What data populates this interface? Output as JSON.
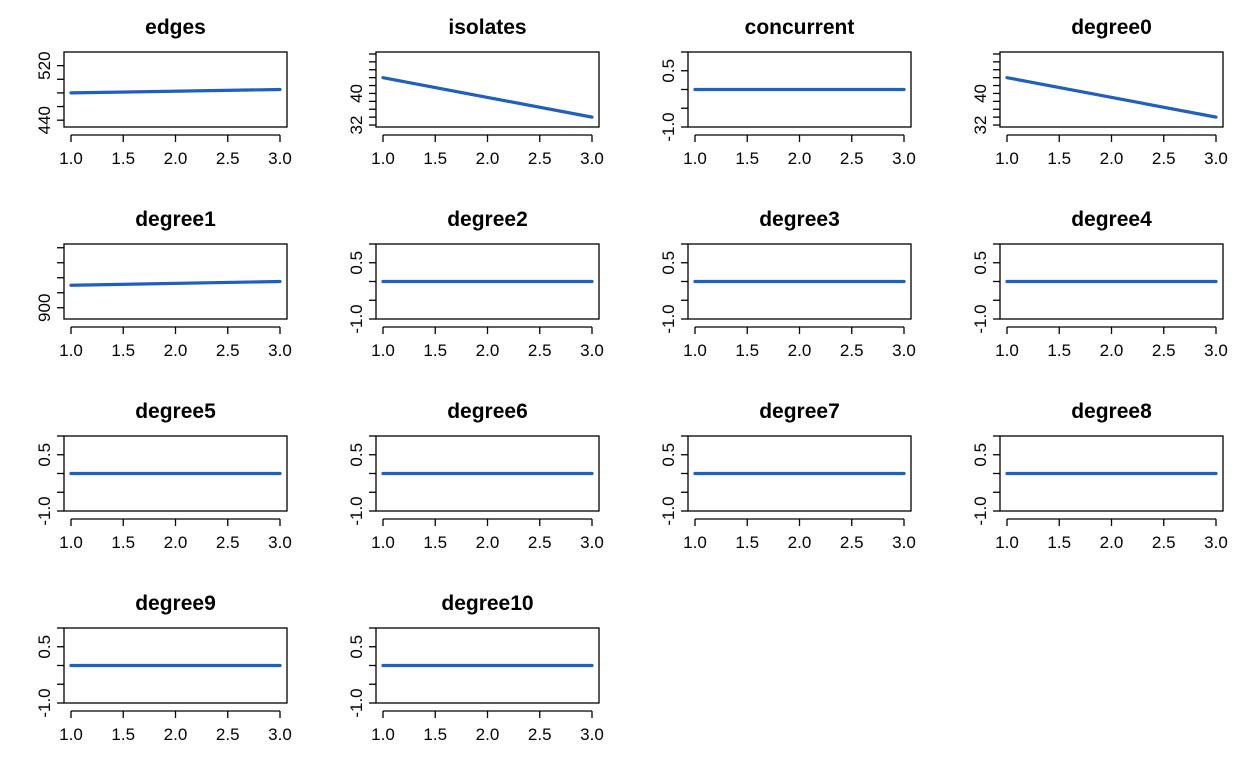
{
  "chart_data": {
    "type": "line",
    "layout": {
      "rows": 4,
      "cols": 4
    },
    "line_color": "#1f5fbf",
    "panels": [
      {
        "title": "edges",
        "x": [
          1,
          3
        ],
        "y": [
          480,
          485
        ],
        "ylim": [
          430,
          540
        ],
        "yticks": [
          {
            "v": 440,
            "label": "440"
          },
          {
            "v": 460,
            "label": ""
          },
          {
            "v": 480,
            "label": ""
          },
          {
            "v": 500,
            "label": ""
          },
          {
            "v": 520,
            "label": "520"
          }
        ],
        "xticks": [
          {
            "v": 1.0,
            "label": "1.0"
          },
          {
            "v": 1.5,
            "label": "1.5"
          },
          {
            "v": 2.0,
            "label": "2.0"
          },
          {
            "v": 2.5,
            "label": "2.5"
          },
          {
            "v": 3.0,
            "label": "3.0"
          }
        ]
      },
      {
        "title": "isolates",
        "x": [
          1,
          3
        ],
        "y": [
          44,
          34
        ],
        "ylim": [
          31.5,
          50.5
        ],
        "yticks": [
          {
            "v": 32,
            "label": "32"
          },
          {
            "v": 34,
            "label": ""
          },
          {
            "v": 36,
            "label": ""
          },
          {
            "v": 38,
            "label": ""
          },
          {
            "v": 40,
            "label": "40"
          },
          {
            "v": 42,
            "label": ""
          },
          {
            "v": 44,
            "label": ""
          },
          {
            "v": 46,
            "label": ""
          },
          {
            "v": 48,
            "label": ""
          },
          {
            "v": 50,
            "label": ""
          }
        ],
        "xticks": [
          {
            "v": 1.0,
            "label": "1.0"
          },
          {
            "v": 1.5,
            "label": "1.5"
          },
          {
            "v": 2.0,
            "label": "2.0"
          },
          {
            "v": 2.5,
            "label": "2.5"
          },
          {
            "v": 3.0,
            "label": "3.0"
          }
        ]
      },
      {
        "title": "concurrent",
        "x": [
          1,
          3
        ],
        "y": [
          0,
          0
        ],
        "ylim": [
          -1.0,
          1.0
        ],
        "yticks": [
          {
            "v": -1.0,
            "label": "-1.0"
          },
          {
            "v": -0.5,
            "label": ""
          },
          {
            "v": 0.0,
            "label": ""
          },
          {
            "v": 0.5,
            "label": "0.5"
          },
          {
            "v": 1.0,
            "label": ""
          }
        ],
        "xticks": [
          {
            "v": 1.0,
            "label": "1.0"
          },
          {
            "v": 1.5,
            "label": "1.5"
          },
          {
            "v": 2.0,
            "label": "2.0"
          },
          {
            "v": 2.5,
            "label": "2.5"
          },
          {
            "v": 3.0,
            "label": "3.0"
          }
        ]
      },
      {
        "title": "degree0",
        "x": [
          1,
          3
        ],
        "y": [
          44,
          34
        ],
        "ylim": [
          31.5,
          50.5
        ],
        "yticks": [
          {
            "v": 32,
            "label": "32"
          },
          {
            "v": 34,
            "label": ""
          },
          {
            "v": 36,
            "label": ""
          },
          {
            "v": 38,
            "label": ""
          },
          {
            "v": 40,
            "label": "40"
          },
          {
            "v": 42,
            "label": ""
          },
          {
            "v": 44,
            "label": ""
          },
          {
            "v": 46,
            "label": ""
          },
          {
            "v": 48,
            "label": ""
          },
          {
            "v": 50,
            "label": ""
          }
        ],
        "xticks": [
          {
            "v": 1.0,
            "label": "1.0"
          },
          {
            "v": 1.5,
            "label": "1.5"
          },
          {
            "v": 2.0,
            "label": "2.0"
          },
          {
            "v": 2.5,
            "label": "2.5"
          },
          {
            "v": 3.0,
            "label": "3.0"
          }
        ]
      },
      {
        "title": "degree1",
        "x": [
          1,
          3
        ],
        "y": [
          930,
          935
        ],
        "ylim": [
          885,
          985
        ],
        "yticks": [
          {
            "v": 900,
            "label": "900"
          },
          {
            "v": 920,
            "label": ""
          },
          {
            "v": 940,
            "label": ""
          },
          {
            "v": 960,
            "label": ""
          },
          {
            "v": 980,
            "label": ""
          }
        ],
        "xticks": [
          {
            "v": 1.0,
            "label": "1.0"
          },
          {
            "v": 1.5,
            "label": "1.5"
          },
          {
            "v": 2.0,
            "label": "2.0"
          },
          {
            "v": 2.5,
            "label": "2.5"
          },
          {
            "v": 3.0,
            "label": "3.0"
          }
        ]
      },
      {
        "title": "degree2",
        "x": [
          1,
          3
        ],
        "y": [
          0,
          0
        ],
        "ylim": [
          -1.0,
          1.0
        ],
        "yticks": [
          {
            "v": -1.0,
            "label": "-1.0"
          },
          {
            "v": -0.5,
            "label": ""
          },
          {
            "v": 0.0,
            "label": ""
          },
          {
            "v": 0.5,
            "label": "0.5"
          },
          {
            "v": 1.0,
            "label": ""
          }
        ],
        "xticks": [
          {
            "v": 1.0,
            "label": "1.0"
          },
          {
            "v": 1.5,
            "label": "1.5"
          },
          {
            "v": 2.0,
            "label": "2.0"
          },
          {
            "v": 2.5,
            "label": "2.5"
          },
          {
            "v": 3.0,
            "label": "3.0"
          }
        ]
      },
      {
        "title": "degree3",
        "x": [
          1,
          3
        ],
        "y": [
          0,
          0
        ],
        "ylim": [
          -1.0,
          1.0
        ],
        "yticks": [
          {
            "v": -1.0,
            "label": "-1.0"
          },
          {
            "v": -0.5,
            "label": ""
          },
          {
            "v": 0.0,
            "label": ""
          },
          {
            "v": 0.5,
            "label": "0.5"
          },
          {
            "v": 1.0,
            "label": ""
          }
        ],
        "xticks": [
          {
            "v": 1.0,
            "label": "1.0"
          },
          {
            "v": 1.5,
            "label": "1.5"
          },
          {
            "v": 2.0,
            "label": "2.0"
          },
          {
            "v": 2.5,
            "label": "2.5"
          },
          {
            "v": 3.0,
            "label": "3.0"
          }
        ]
      },
      {
        "title": "degree4",
        "x": [
          1,
          3
        ],
        "y": [
          0,
          0
        ],
        "ylim": [
          -1.0,
          1.0
        ],
        "yticks": [
          {
            "v": -1.0,
            "label": "-1.0"
          },
          {
            "v": -0.5,
            "label": ""
          },
          {
            "v": 0.0,
            "label": ""
          },
          {
            "v": 0.5,
            "label": "0.5"
          },
          {
            "v": 1.0,
            "label": ""
          }
        ],
        "xticks": [
          {
            "v": 1.0,
            "label": "1.0"
          },
          {
            "v": 1.5,
            "label": "1.5"
          },
          {
            "v": 2.0,
            "label": "2.0"
          },
          {
            "v": 2.5,
            "label": "2.5"
          },
          {
            "v": 3.0,
            "label": "3.0"
          }
        ]
      },
      {
        "title": "degree5",
        "x": [
          1,
          3
        ],
        "y": [
          0,
          0
        ],
        "ylim": [
          -1.0,
          1.0
        ],
        "yticks": [
          {
            "v": -1.0,
            "label": "-1.0"
          },
          {
            "v": -0.5,
            "label": ""
          },
          {
            "v": 0.0,
            "label": ""
          },
          {
            "v": 0.5,
            "label": "0.5"
          },
          {
            "v": 1.0,
            "label": ""
          }
        ],
        "xticks": [
          {
            "v": 1.0,
            "label": "1.0"
          },
          {
            "v": 1.5,
            "label": "1.5"
          },
          {
            "v": 2.0,
            "label": "2.0"
          },
          {
            "v": 2.5,
            "label": "2.5"
          },
          {
            "v": 3.0,
            "label": "3.0"
          }
        ]
      },
      {
        "title": "degree6",
        "x": [
          1,
          3
        ],
        "y": [
          0,
          0
        ],
        "ylim": [
          -1.0,
          1.0
        ],
        "yticks": [
          {
            "v": -1.0,
            "label": "-1.0"
          },
          {
            "v": -0.5,
            "label": ""
          },
          {
            "v": 0.0,
            "label": ""
          },
          {
            "v": 0.5,
            "label": "0.5"
          },
          {
            "v": 1.0,
            "label": ""
          }
        ],
        "xticks": [
          {
            "v": 1.0,
            "label": "1.0"
          },
          {
            "v": 1.5,
            "label": "1.5"
          },
          {
            "v": 2.0,
            "label": "2.0"
          },
          {
            "v": 2.5,
            "label": "2.5"
          },
          {
            "v": 3.0,
            "label": "3.0"
          }
        ]
      },
      {
        "title": "degree7",
        "x": [
          1,
          3
        ],
        "y": [
          0,
          0
        ],
        "ylim": [
          -1.0,
          1.0
        ],
        "yticks": [
          {
            "v": -1.0,
            "label": "-1.0"
          },
          {
            "v": -0.5,
            "label": ""
          },
          {
            "v": 0.0,
            "label": ""
          },
          {
            "v": 0.5,
            "label": "0.5"
          },
          {
            "v": 1.0,
            "label": ""
          }
        ],
        "xticks": [
          {
            "v": 1.0,
            "label": "1.0"
          },
          {
            "v": 1.5,
            "label": "1.5"
          },
          {
            "v": 2.0,
            "label": "2.0"
          },
          {
            "v": 2.5,
            "label": "2.5"
          },
          {
            "v": 3.0,
            "label": "3.0"
          }
        ]
      },
      {
        "title": "degree8",
        "x": [
          1,
          3
        ],
        "y": [
          0,
          0
        ],
        "ylim": [
          -1.0,
          1.0
        ],
        "yticks": [
          {
            "v": -1.0,
            "label": "-1.0"
          },
          {
            "v": -0.5,
            "label": ""
          },
          {
            "v": 0.0,
            "label": ""
          },
          {
            "v": 0.5,
            "label": "0.5"
          },
          {
            "v": 1.0,
            "label": ""
          }
        ],
        "xticks": [
          {
            "v": 1.0,
            "label": "1.0"
          },
          {
            "v": 1.5,
            "label": "1.5"
          },
          {
            "v": 2.0,
            "label": "2.0"
          },
          {
            "v": 2.5,
            "label": "2.5"
          },
          {
            "v": 3.0,
            "label": "3.0"
          }
        ]
      },
      {
        "title": "degree9",
        "x": [
          1,
          3
        ],
        "y": [
          0,
          0
        ],
        "ylim": [
          -1.0,
          1.0
        ],
        "yticks": [
          {
            "v": -1.0,
            "label": "-1.0"
          },
          {
            "v": -0.5,
            "label": ""
          },
          {
            "v": 0.0,
            "label": ""
          },
          {
            "v": 0.5,
            "label": "0.5"
          },
          {
            "v": 1.0,
            "label": ""
          }
        ],
        "xticks": [
          {
            "v": 1.0,
            "label": "1.0"
          },
          {
            "v": 1.5,
            "label": "1.5"
          },
          {
            "v": 2.0,
            "label": "2.0"
          },
          {
            "v": 2.5,
            "label": "2.5"
          },
          {
            "v": 3.0,
            "label": "3.0"
          }
        ]
      },
      {
        "title": "degree10",
        "x": [
          1,
          3
        ],
        "y": [
          0,
          0
        ],
        "ylim": [
          -1.0,
          1.0
        ],
        "yticks": [
          {
            "v": -1.0,
            "label": "-1.0"
          },
          {
            "v": -0.5,
            "label": ""
          },
          {
            "v": 0.0,
            "label": ""
          },
          {
            "v": 0.5,
            "label": "0.5"
          },
          {
            "v": 1.0,
            "label": ""
          }
        ],
        "xticks": [
          {
            "v": 1.0,
            "label": "1.0"
          },
          {
            "v": 1.5,
            "label": "1.5"
          },
          {
            "v": 2.0,
            "label": "2.0"
          },
          {
            "v": 2.5,
            "label": "2.5"
          },
          {
            "v": 3.0,
            "label": "3.0"
          }
        ]
      }
    ]
  }
}
